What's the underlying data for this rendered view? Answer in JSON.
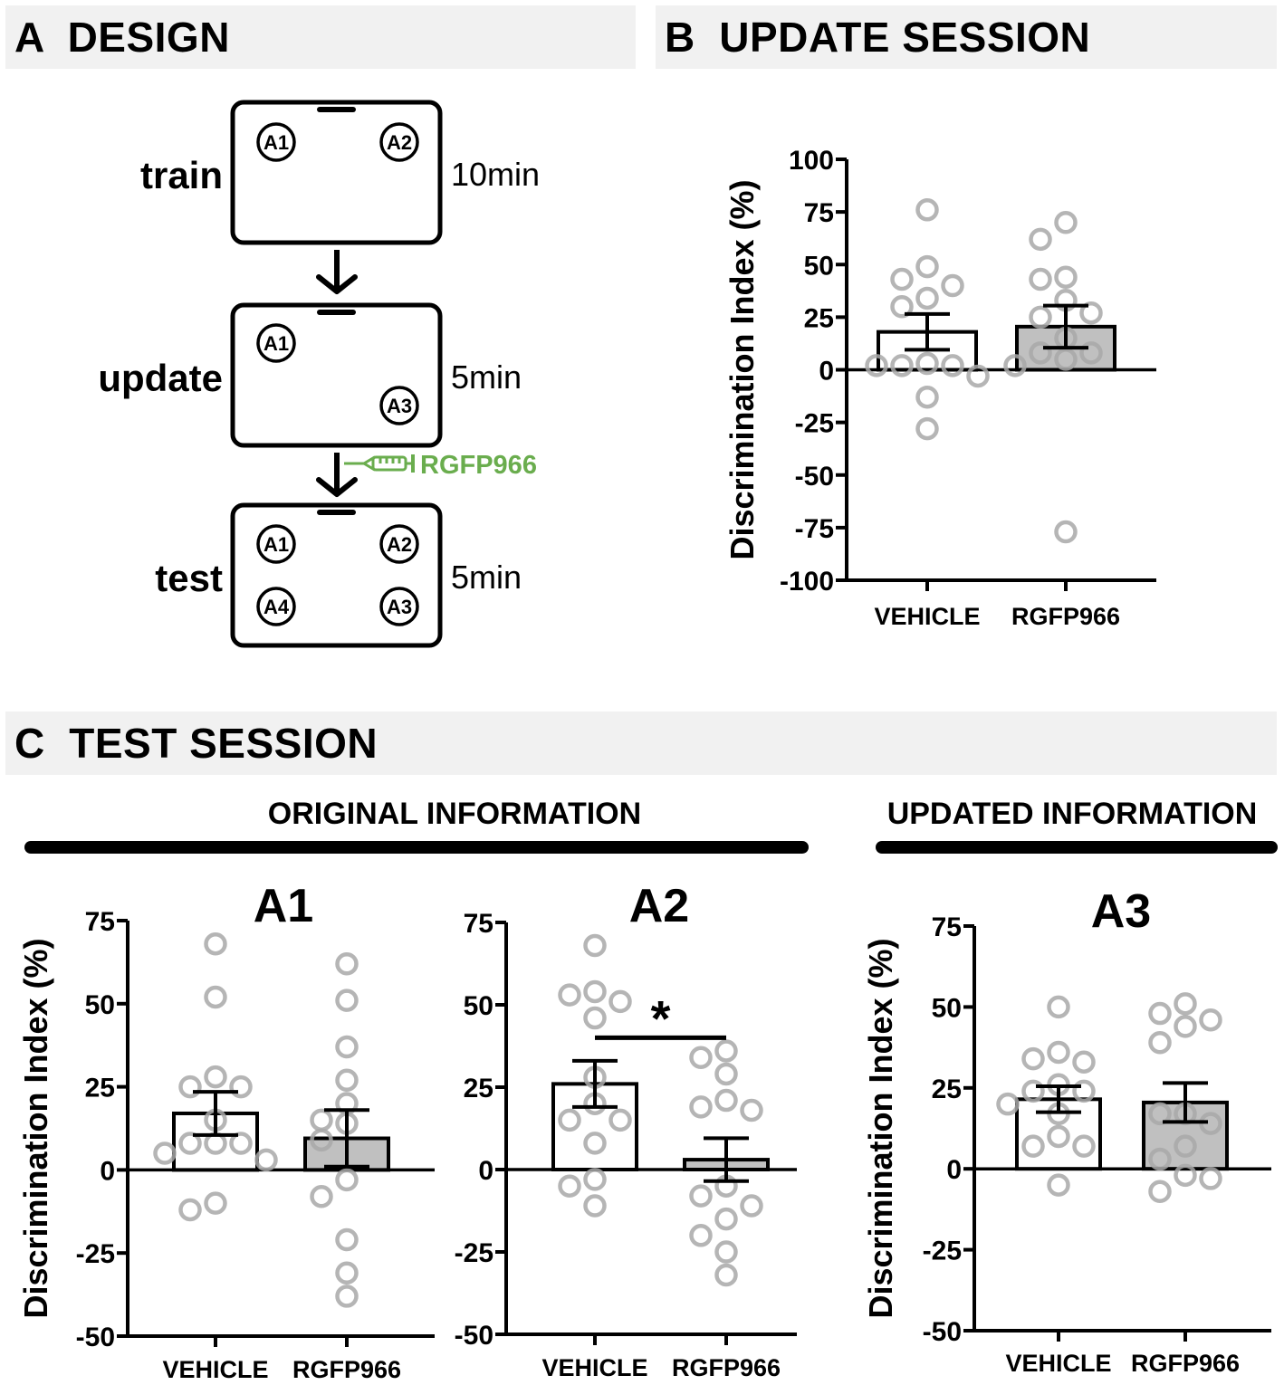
{
  "panels": {
    "a": {
      "header": "A  DESIGN"
    },
    "b": {
      "header": "B  UPDATE SESSION"
    },
    "c": {
      "header": "C  TEST SESSION",
      "group_original": "ORIGINAL INFORMATION",
      "group_updated": "UPDATED INFORMATION"
    }
  },
  "design": {
    "stages": [
      {
        "label": "train",
        "duration": "10min",
        "objects": [
          "A1",
          "A2"
        ]
      },
      {
        "label": "update",
        "duration": "5min",
        "objects": [
          "A1",
          "A3"
        ]
      },
      {
        "label": "test",
        "duration": "5min",
        "objects": [
          "A1",
          "A2",
          "A4",
          "A3"
        ]
      }
    ],
    "injection_label": "RGFP966",
    "injection_color": "#6aad4e"
  },
  "colors": {
    "vehicle_fill": "#ffffff",
    "rgfp_fill": "#c0c0c0",
    "point_stroke": "#a8a8a8",
    "header_bg": "#f1f1f1"
  },
  "chart_data": [
    {
      "id": "update",
      "type": "bar",
      "title": "",
      "ylabel": "Discrimination Index (%)",
      "xlabel": "",
      "categories": [
        "VEHICLE",
        "RGFP966"
      ],
      "ylim": [
        -100,
        100
      ],
      "yticks": [
        100,
        75,
        50,
        25,
        0,
        -25,
        -50,
        -75,
        -100
      ],
      "means": [
        18,
        20.5
      ],
      "sem": [
        8.5,
        10
      ],
      "points": [
        [
          76,
          49,
          43,
          40,
          34,
          30,
          3,
          2,
          2,
          2,
          -3,
          -13,
          -28
        ],
        [
          70,
          62,
          44,
          43,
          33,
          25,
          27,
          15,
          8,
          8,
          5,
          2,
          -77
        ]
      ],
      "significance": null
    },
    {
      "id": "test-a1",
      "type": "bar",
      "title": "A1",
      "ylabel": "Discrimination Index (%)",
      "xlabel": "",
      "categories": [
        "VEHICLE",
        "RGFP966"
      ],
      "ylim": [
        -50,
        75
      ],
      "yticks": [
        75,
        50,
        25,
        0,
        -25,
        -50
      ],
      "means": [
        17,
        9.5
      ],
      "sem": [
        6.5,
        8.5
      ],
      "points": [
        [
          68,
          52,
          28,
          25,
          25,
          15,
          8,
          8,
          8,
          5,
          3,
          -10,
          -12
        ],
        [
          62,
          51,
          37,
          27,
          20,
          15,
          14,
          9,
          -3,
          -8,
          -21,
          -31,
          -38
        ]
      ],
      "significance": null
    },
    {
      "id": "test-a2",
      "type": "bar",
      "title": "A2",
      "ylabel": "",
      "xlabel": "",
      "categories": [
        "VEHICLE",
        "RGFP966"
      ],
      "ylim": [
        -50,
        75
      ],
      "yticks": [
        75,
        50,
        25,
        0,
        -25,
        -50
      ],
      "means": [
        26,
        3
      ],
      "sem": [
        7,
        6.5
      ],
      "points": [
        [
          68,
          54,
          53,
          51,
          46,
          28,
          20,
          15,
          15,
          8,
          -3,
          -5,
          -11
        ],
        [
          36,
          34,
          29,
          21,
          19,
          18,
          -5,
          -8,
          -11,
          -15,
          -20,
          -25,
          -32
        ]
      ],
      "significance": {
        "label": "*",
        "between": [
          "VEHICLE",
          "RGFP966"
        ],
        "level": 40
      }
    },
    {
      "id": "test-a3",
      "type": "bar",
      "title": "A3",
      "ylabel": "Discrimination Index (%)",
      "xlabel": "",
      "categories": [
        "VEHICLE",
        "RGFP966"
      ],
      "ylim": [
        -50,
        75
      ],
      "yticks": [
        75,
        50,
        25,
        0,
        -25,
        -50
      ],
      "means": [
        21.5,
        20.5
      ],
      "sem": [
        4,
        6
      ],
      "points": [
        [
          50,
          36,
          34,
          33,
          26,
          24,
          24,
          20,
          17,
          10,
          7,
          7,
          -5
        ],
        [
          51,
          48,
          46,
          44,
          39,
          17,
          17,
          14,
          7,
          3,
          -2,
          -3,
          -7
        ]
      ],
      "significance": null
    }
  ]
}
